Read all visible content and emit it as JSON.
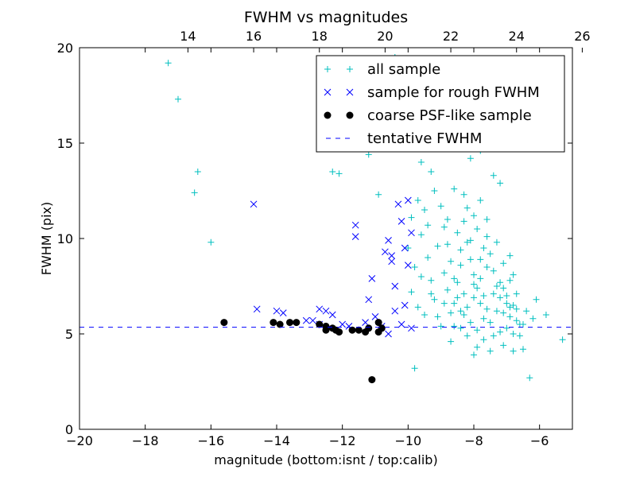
{
  "chart_data": {
    "type": "scatter",
    "title": "FWHM vs magnitudes",
    "xlabel": "magnitude (bottom:isnt / top:calib)",
    "ylabel": "FWHM (pix)",
    "xlim": [
      -20,
      -5
    ],
    "ylim": [
      0,
      20
    ],
    "x_ticks": [
      -20,
      -18,
      -16,
      -14,
      -12,
      -10,
      -8,
      -6
    ],
    "x_tick_labels": [
      "−20",
      "−18",
      "−16",
      "−14",
      "−12",
      "−10",
      "−8",
      "−6"
    ],
    "y_ticks": [
      0,
      5,
      10,
      15,
      20
    ],
    "y_tick_labels": [
      "0",
      "5",
      "10",
      "15",
      "20"
    ],
    "top_axis": {
      "offset": 30.7,
      "ticks": [
        14,
        16,
        18,
        20,
        22,
        24,
        26
      ],
      "tick_labels": [
        "14",
        "16",
        "18",
        "20",
        "22",
        "24",
        "26"
      ]
    },
    "grid": false,
    "legend": {
      "position": "top-right",
      "entries": [
        "all sample",
        "sample for rough FWHM",
        "coarse PSF-like sample",
        "tentative FWHM"
      ]
    },
    "tentative_fwhm": 5.35,
    "colors": {
      "all_sample": "#00bfbf",
      "rough": "#0000ff",
      "psf": "#000000",
      "tentative": "#0000ff"
    },
    "series": [
      {
        "name": "all sample",
        "marker": "plus",
        "points": [
          [
            -17.3,
            19.2
          ],
          [
            -17.0,
            17.3
          ],
          [
            -16.4,
            13.5
          ],
          [
            -16.5,
            12.4
          ],
          [
            -16.0,
            9.8
          ],
          [
            -12.3,
            13.5
          ],
          [
            -12.1,
            13.4
          ],
          [
            -11.2,
            14.4
          ],
          [
            -10.9,
            12.3
          ],
          [
            -10.4,
            19.5
          ],
          [
            -10.5,
            14.7
          ],
          [
            -10.0,
            16.3
          ],
          [
            -9.8,
            15.0
          ],
          [
            -9.6,
            14.0
          ],
          [
            -9.3,
            13.5
          ],
          [
            -9.0,
            15.5
          ],
          [
            -8.7,
            16.0
          ],
          [
            -8.4,
            15.3
          ],
          [
            -8.1,
            14.2
          ],
          [
            -7.8,
            14.6
          ],
          [
            -7.4,
            13.3
          ],
          [
            -7.2,
            12.9
          ],
          [
            -9.8,
            3.2
          ],
          [
            -6.3,
            2.7
          ],
          [
            -5.3,
            4.7
          ],
          [
            -5.8,
            6.0
          ],
          [
            -6.1,
            6.8
          ],
          [
            -6.5,
            5.5
          ],
          [
            -10.0,
            9.5
          ],
          [
            -9.8,
            8.5
          ],
          [
            -9.9,
            7.2
          ],
          [
            -9.7,
            6.4
          ],
          [
            -9.5,
            11.5
          ],
          [
            -9.6,
            10.2
          ],
          [
            -9.4,
            9.0
          ],
          [
            -9.3,
            7.8
          ],
          [
            -9.2,
            6.8
          ],
          [
            -9.1,
            5.9
          ],
          [
            -9.0,
            11.7
          ],
          [
            -8.9,
            10.6
          ],
          [
            -8.8,
            9.7
          ],
          [
            -8.7,
            8.8
          ],
          [
            -8.6,
            7.9
          ],
          [
            -8.5,
            6.9
          ],
          [
            -8.4,
            6.2
          ],
          [
            -8.3,
            10.9
          ],
          [
            -8.2,
            9.8
          ],
          [
            -8.1,
            8.9
          ],
          [
            -8.0,
            8.1
          ],
          [
            -7.9,
            7.4
          ],
          [
            -7.8,
            6.6
          ],
          [
            -7.7,
            5.8
          ],
          [
            -7.6,
            10.1
          ],
          [
            -7.5,
            9.2
          ],
          [
            -7.4,
            8.3
          ],
          [
            -7.3,
            7.5
          ],
          [
            -7.2,
            6.9
          ],
          [
            -7.1,
            6.1
          ],
          [
            -7.0,
            5.3
          ],
          [
            -6.9,
            7.8
          ],
          [
            -6.8,
            6.5
          ],
          [
            -6.7,
            5.7
          ],
          [
            -6.6,
            4.9
          ],
          [
            -6.5,
            4.2
          ],
          [
            -8.9,
            6.6
          ],
          [
            -8.8,
            7.3
          ],
          [
            -8.7,
            6.1
          ],
          [
            -8.6,
            5.4
          ],
          [
            -8.5,
            7.7
          ],
          [
            -8.4,
            8.6
          ],
          [
            -8.3,
            7.1
          ],
          [
            -8.2,
            6.4
          ],
          [
            -8.1,
            5.6
          ],
          [
            -8.0,
            6.9
          ],
          [
            -7.9,
            5.2
          ],
          [
            -7.8,
            8.9
          ],
          [
            -7.7,
            7.0
          ],
          [
            -7.6,
            6.3
          ],
          [
            -7.5,
            5.6
          ],
          [
            -7.4,
            4.9
          ],
          [
            -7.3,
            6.2
          ],
          [
            -7.2,
            5.1
          ],
          [
            -7.1,
            7.4
          ],
          [
            -7.0,
            6.6
          ],
          [
            -6.9,
            5.9
          ],
          [
            -6.8,
            5.0
          ],
          [
            -6.7,
            6.3
          ],
          [
            -6.6,
            5.5
          ],
          [
            -8.3,
            12.3
          ],
          [
            -8.2,
            11.6
          ],
          [
            -8.0,
            11.2
          ],
          [
            -7.8,
            12.0
          ],
          [
            -7.6,
            11.0
          ],
          [
            -8.6,
            12.6
          ],
          [
            -8.8,
            11.0
          ],
          [
            -9.2,
            12.5
          ],
          [
            -9.4,
            10.7
          ],
          [
            -9.9,
            11.1
          ],
          [
            -9.7,
            12.0
          ],
          [
            -9.1,
            9.6
          ],
          [
            -8.5,
            10.3
          ],
          [
            -7.9,
            10.5
          ],
          [
            -7.3,
            9.8
          ],
          [
            -7.1,
            8.7
          ],
          [
            -6.9,
            9.1
          ],
          [
            -6.8,
            8.1
          ],
          [
            -7.7,
            9.5
          ],
          [
            -8.1,
            9.9
          ],
          [
            -8.4,
            9.4
          ],
          [
            -8.9,
            8.2
          ],
          [
            -9.3,
            7.1
          ],
          [
            -9.6,
            8.0
          ],
          [
            -9.5,
            6.0
          ],
          [
            -9.0,
            5.4
          ],
          [
            -8.7,
            4.6
          ],
          [
            -8.2,
            4.9
          ],
          [
            -7.9,
            4.3
          ],
          [
            -7.5,
            4.1
          ],
          [
            -7.1,
            4.4
          ],
          [
            -6.8,
            4.1
          ],
          [
            -8.0,
            3.9
          ],
          [
            -7.7,
            4.7
          ],
          [
            -8.4,
            5.3
          ],
          [
            -8.6,
            6.6
          ],
          [
            -8.3,
            6.0
          ],
          [
            -8.0,
            7.6
          ],
          [
            -7.8,
            7.9
          ],
          [
            -7.6,
            8.5
          ],
          [
            -7.4,
            7.1
          ],
          [
            -7.2,
            7.7
          ],
          [
            -7.0,
            7.0
          ],
          [
            -6.9,
            6.4
          ],
          [
            -6.7,
            7.1
          ],
          [
            -6.4,
            6.2
          ],
          [
            -6.2,
            5.8
          ]
        ]
      },
      {
        "name": "sample for rough FWHM",
        "marker": "x",
        "points": [
          [
            -14.7,
            11.8
          ],
          [
            -14.6,
            6.3
          ],
          [
            -14.0,
            6.2
          ],
          [
            -13.8,
            6.1
          ],
          [
            -13.1,
            5.7
          ],
          [
            -12.7,
            6.3
          ],
          [
            -12.5,
            6.2
          ],
          [
            -12.3,
            6.0
          ],
          [
            -12.0,
            5.5
          ],
          [
            -11.6,
            10.7
          ],
          [
            -11.6,
            10.1
          ],
          [
            -11.1,
            7.9
          ],
          [
            -11.2,
            6.8
          ],
          [
            -11.0,
            5.9
          ],
          [
            -10.8,
            5.4
          ],
          [
            -10.7,
            9.3
          ],
          [
            -10.6,
            9.9
          ],
          [
            -10.5,
            8.8
          ],
          [
            -10.4,
            7.5
          ],
          [
            -10.4,
            6.2
          ],
          [
            -10.3,
            11.8
          ],
          [
            -10.2,
            10.9
          ],
          [
            -10.1,
            9.5
          ],
          [
            -10.0,
            8.6
          ],
          [
            -10.0,
            12.0
          ],
          [
            -9.9,
            10.3
          ],
          [
            -10.1,
            6.5
          ],
          [
            -10.2,
            5.5
          ],
          [
            -9.9,
            5.3
          ],
          [
            -10.6,
            5.0
          ],
          [
            -11.3,
            5.6
          ],
          [
            -11.8,
            5.4
          ],
          [
            -12.9,
            5.7
          ],
          [
            -12.7,
            5.5
          ],
          [
            -10.5,
            9.1
          ]
        ]
      },
      {
        "name": "coarse PSF-like sample",
        "marker": "circle",
        "points": [
          [
            -15.6,
            5.6
          ],
          [
            -14.1,
            5.6
          ],
          [
            -13.9,
            5.5
          ],
          [
            -13.6,
            5.6
          ],
          [
            -13.4,
            5.6
          ],
          [
            -12.7,
            5.5
          ],
          [
            -12.5,
            5.4
          ],
          [
            -12.5,
            5.2
          ],
          [
            -12.3,
            5.3
          ],
          [
            -12.2,
            5.2
          ],
          [
            -12.1,
            5.1
          ],
          [
            -11.7,
            5.2
          ],
          [
            -11.5,
            5.2
          ],
          [
            -11.3,
            5.1
          ],
          [
            -11.2,
            5.3
          ],
          [
            -10.9,
            5.6
          ],
          [
            -10.8,
            5.3
          ],
          [
            -10.9,
            5.1
          ],
          [
            -11.1,
            2.6
          ]
        ]
      }
    ]
  }
}
